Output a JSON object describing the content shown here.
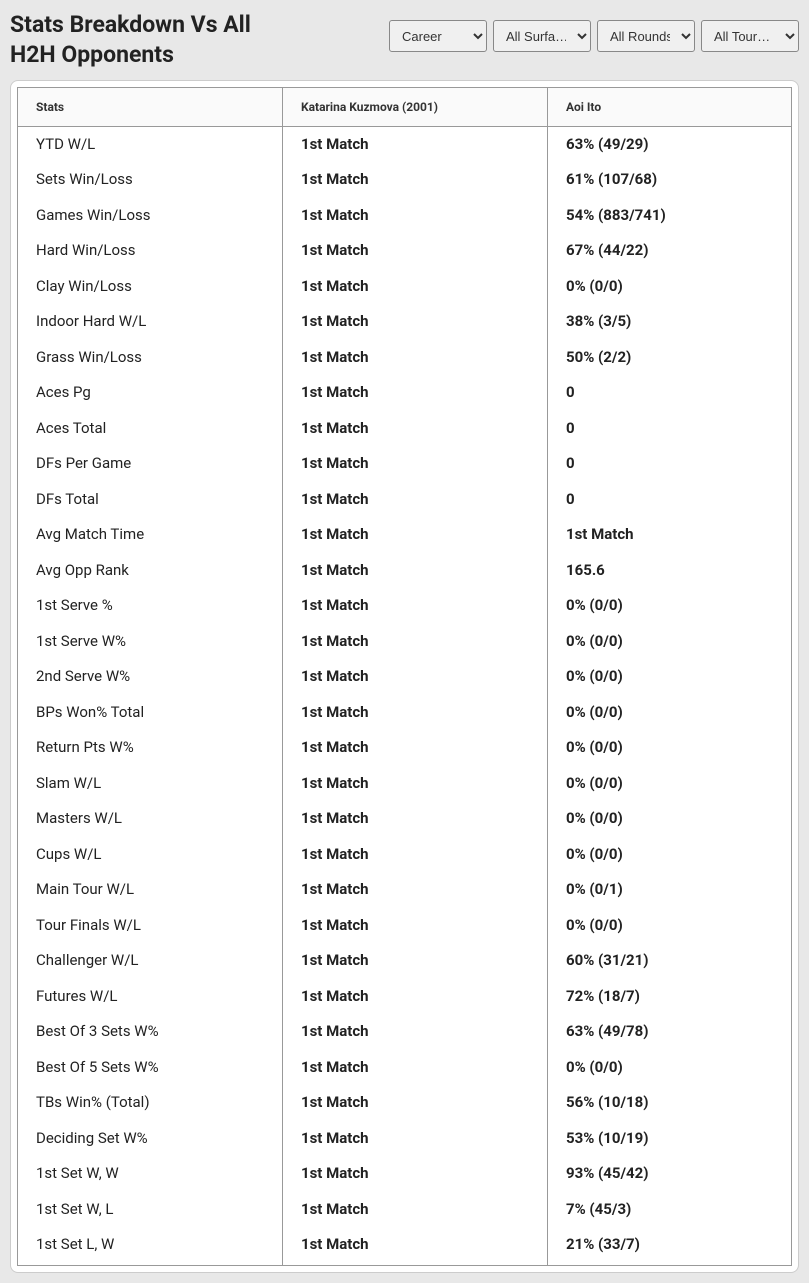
{
  "header": {
    "title": "Stats Breakdown Vs All H2H Opponents"
  },
  "filters": {
    "career": {
      "selected": "Career"
    },
    "surfaces": {
      "selected": "All Surfa…"
    },
    "rounds": {
      "selected": "All Rounds"
    },
    "tours": {
      "selected": "All Tour…"
    }
  },
  "table": {
    "headers": {
      "stats": "Stats",
      "player1": "Katarina Kuzmova (2001)",
      "player2": "Aoi Ito"
    },
    "rows": [
      {
        "stat": "YTD W/L",
        "p1": "1st Match",
        "p2": "63% (49/29)"
      },
      {
        "stat": "Sets Win/Loss",
        "p1": "1st Match",
        "p2": "61% (107/68)"
      },
      {
        "stat": "Games Win/Loss",
        "p1": "1st Match",
        "p2": "54% (883/741)"
      },
      {
        "stat": "Hard Win/Loss",
        "p1": "1st Match",
        "p2": "67% (44/22)"
      },
      {
        "stat": "Clay Win/Loss",
        "p1": "1st Match",
        "p2": "0% (0/0)"
      },
      {
        "stat": "Indoor Hard W/L",
        "p1": "1st Match",
        "p2": "38% (3/5)"
      },
      {
        "stat": "Grass Win/Loss",
        "p1": "1st Match",
        "p2": "50% (2/2)"
      },
      {
        "stat": "Aces Pg",
        "p1": "1st Match",
        "p2": "0"
      },
      {
        "stat": "Aces Total",
        "p1": "1st Match",
        "p2": "0"
      },
      {
        "stat": "DFs Per Game",
        "p1": "1st Match",
        "p2": "0"
      },
      {
        "stat": "DFs Total",
        "p1": "1st Match",
        "p2": "0"
      },
      {
        "stat": "Avg Match Time",
        "p1": "1st Match",
        "p2": "1st Match"
      },
      {
        "stat": "Avg Opp Rank",
        "p1": "1st Match",
        "p2": "165.6"
      },
      {
        "stat": "1st Serve %",
        "p1": "1st Match",
        "p2": "0% (0/0)"
      },
      {
        "stat": "1st Serve W%",
        "p1": "1st Match",
        "p2": "0% (0/0)"
      },
      {
        "stat": "2nd Serve W%",
        "p1": "1st Match",
        "p2": "0% (0/0)"
      },
      {
        "stat": "BPs Won% Total",
        "p1": "1st Match",
        "p2": "0% (0/0)"
      },
      {
        "stat": "Return Pts W%",
        "p1": "1st Match",
        "p2": "0% (0/0)"
      },
      {
        "stat": "Slam W/L",
        "p1": "1st Match",
        "p2": "0% (0/0)"
      },
      {
        "stat": "Masters W/L",
        "p1": "1st Match",
        "p2": "0% (0/0)"
      },
      {
        "stat": "Cups W/L",
        "p1": "1st Match",
        "p2": "0% (0/0)"
      },
      {
        "stat": "Main Tour W/L",
        "p1": "1st Match",
        "p2": "0% (0/1)"
      },
      {
        "stat": "Tour Finals W/L",
        "p1": "1st Match",
        "p2": "0% (0/0)"
      },
      {
        "stat": "Challenger W/L",
        "p1": "1st Match",
        "p2": "60% (31/21)"
      },
      {
        "stat": "Futures W/L",
        "p1": "1st Match",
        "p2": "72% (18/7)"
      },
      {
        "stat": "Best Of 3 Sets W%",
        "p1": "1st Match",
        "p2": "63% (49/78)"
      },
      {
        "stat": "Best Of 5 Sets W%",
        "p1": "1st Match",
        "p2": "0% (0/0)"
      },
      {
        "stat": "TBs Win% (Total)",
        "p1": "1st Match",
        "p2": "56% (10/18)"
      },
      {
        "stat": "Deciding Set W%",
        "p1": "1st Match",
        "p2": "53% (10/19)"
      },
      {
        "stat": "1st Set W, W",
        "p1": "1st Match",
        "p2": "93% (45/42)"
      },
      {
        "stat": "1st Set W, L",
        "p1": "1st Match",
        "p2": "7% (45/3)"
      },
      {
        "stat": "1st Set L, W",
        "p1": "1st Match",
        "p2": "21% (33/7)"
      }
    ]
  },
  "styling": {
    "background_color": "#e8e8e8",
    "table_background": "#ffffff",
    "border_color": "#999999",
    "text_color": "#222222",
    "header_background": "#fafafa"
  }
}
